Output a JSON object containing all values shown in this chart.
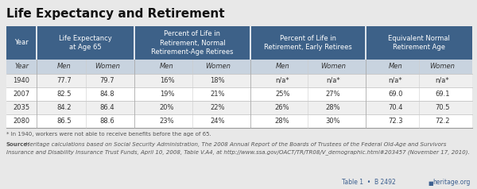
{
  "title": "Life Expectancy and Retirement",
  "header_bg_color": "#3d6188",
  "subheader_bg_color": "#c8d3df",
  "row_colors": [
    "#efefef",
    "#ffffff",
    "#efefef",
    "#ffffff"
  ],
  "col_group_headers": [
    "Life Expectancy\nat Age 65",
    "Percent of Life in\nRetirement, Normal\nRetirement-Age Retirees",
    "Percent of Life in\nRetirement, Early Retirees",
    "Equivalent Normal\nRetirement Age"
  ],
  "subheaders": [
    "Men",
    "Women",
    "Men",
    "Women",
    "Men",
    "Women",
    "Men",
    "Women"
  ],
  "year_col": [
    "1940",
    "2007",
    "2035",
    "2080"
  ],
  "data": [
    [
      "77.7",
      "79.7",
      "16%",
      "18%",
      "n/a*",
      "n/a*",
      "n/a*",
      "n/a*"
    ],
    [
      "82.5",
      "84.8",
      "19%",
      "21%",
      "25%",
      "27%",
      "69.0",
      "69.1"
    ],
    [
      "84.2",
      "86.4",
      "20%",
      "22%",
      "26%",
      "28%",
      "70.4",
      "70.5"
    ],
    [
      "86.5",
      "88.6",
      "23%",
      "24%",
      "28%",
      "30%",
      "72.3",
      "72.2"
    ]
  ],
  "footnote1": "* In 1940, workers were not able to receive benefits before the age of 65.",
  "source_bold": "Source:",
  "source_rest": " Heritage calculations based on Social Security Administration, The 2008 Annual Report of the Boards of Trustees of the Federal Old-Age and Survivors",
  "source_line2": "Insurance and Disability Insurance Trust Funds, April 10, 2008, Table V.A4, at http://www.ssa.gov/OACT/TR/TR08/V_demographic.html#203457 (November 17, 2010).",
  "table_ref": "Table 1  •  B 2492",
  "website": "heritage.org",
  "bg_color": "#e8e8e8",
  "text_color": "#333333",
  "footnote_color": "#555555",
  "blue_ref_color": "#3d6090"
}
